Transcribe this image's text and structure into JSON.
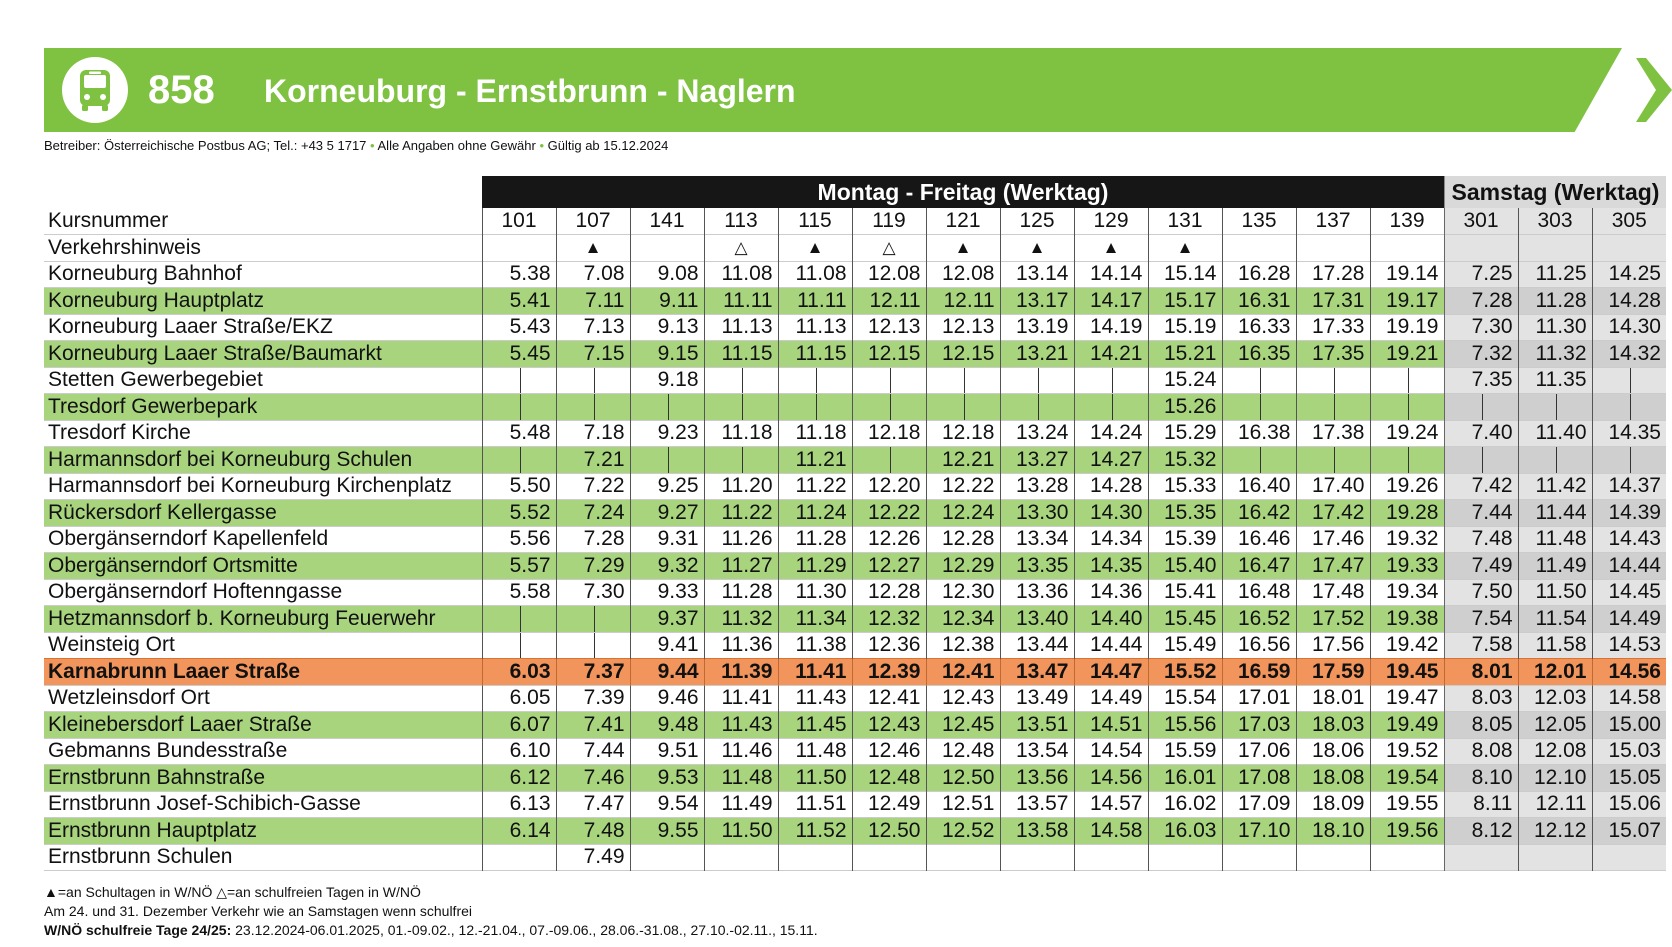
{
  "header": {
    "line_number": "858",
    "route_title": "Korneuburg - Ernstbrunn - Naglern",
    "operator_text": "Betreiber: Österreichische Postbus AG; Tel.: +43 5 1717",
    "disclaimer": "Alle Angaben ohne Gewähr",
    "valid_from": "Gültig ab 15.12.2024",
    "bullet": "•"
  },
  "groups": {
    "weekday": "Montag - Freitag (Werktag)",
    "saturday": "Samstag (Werktag)"
  },
  "row_labels": {
    "course_number": "Kursnummer",
    "traffic_note": "Verkehrshinweis"
  },
  "courses": [
    "101",
    "107",
    "141",
    "113",
    "115",
    "119",
    "121",
    "125",
    "129",
    "131",
    "135",
    "137",
    "139",
    "301",
    "303",
    "305"
  ],
  "notes": [
    "",
    "▲",
    "",
    "△",
    "▲",
    "△",
    "▲",
    "▲",
    "▲",
    "▲",
    "",
    "",
    "",
    "",
    "",
    ""
  ],
  "stops": [
    {
      "name": "Korneuburg Bahnhof",
      "times": [
        "5.38",
        "7.08",
        "9.08",
        "11.08",
        "11.08",
        "12.08",
        "12.08",
        "13.14",
        "14.14",
        "15.14",
        "16.28",
        "17.28",
        "19.14",
        "7.25",
        "11.25",
        "14.25"
      ]
    },
    {
      "name": "Korneuburg Hauptplatz",
      "times": [
        "5.41",
        "7.11",
        "9.11",
        "11.11",
        "11.11",
        "12.11",
        "12.11",
        "13.17",
        "14.17",
        "15.17",
        "16.31",
        "17.31",
        "19.17",
        "7.28",
        "11.28",
        "14.28"
      ]
    },
    {
      "name": "Korneuburg Laaer Straße/EKZ",
      "times": [
        "5.43",
        "7.13",
        "9.13",
        "11.13",
        "11.13",
        "12.13",
        "12.13",
        "13.19",
        "14.19",
        "15.19",
        "16.33",
        "17.33",
        "19.19",
        "7.30",
        "11.30",
        "14.30"
      ]
    },
    {
      "name": "Korneuburg Laaer Straße/Baumarkt",
      "times": [
        "5.45",
        "7.15",
        "9.15",
        "11.15",
        "11.15",
        "12.15",
        "12.15",
        "13.21",
        "14.21",
        "15.21",
        "16.35",
        "17.35",
        "19.21",
        "7.32",
        "11.32",
        "14.32"
      ]
    },
    {
      "name": "Stetten Gewerbegebiet",
      "times": [
        "|",
        "|",
        "9.18",
        "|",
        "|",
        "|",
        "|",
        "|",
        "|",
        "15.24",
        "|",
        "|",
        "|",
        "7.35",
        "11.35",
        "|"
      ]
    },
    {
      "name": "Tresdorf Gewerbepark",
      "times": [
        "|",
        "|",
        "|",
        "|",
        "|",
        "|",
        "|",
        "|",
        "|",
        "15.26",
        "|",
        "|",
        "|",
        "|",
        "|",
        "|"
      ]
    },
    {
      "name": "Tresdorf Kirche",
      "times": [
        "5.48",
        "7.18",
        "9.23",
        "11.18",
        "11.18",
        "12.18",
        "12.18",
        "13.24",
        "14.24",
        "15.29",
        "16.38",
        "17.38",
        "19.24",
        "7.40",
        "11.40",
        "14.35"
      ]
    },
    {
      "name": "Harmannsdorf bei Korneuburg Schulen",
      "times": [
        "|",
        "7.21",
        "|",
        "|",
        "11.21",
        "|",
        "12.21",
        "13.27",
        "14.27",
        "15.32",
        "|",
        "|",
        "|",
        "|",
        "|",
        "|"
      ]
    },
    {
      "name": "Harmannsdorf bei Korneuburg Kirchenplatz",
      "times": [
        "5.50",
        "7.22",
        "9.25",
        "11.20",
        "11.22",
        "12.20",
        "12.22",
        "13.28",
        "14.28",
        "15.33",
        "16.40",
        "17.40",
        "19.26",
        "7.42",
        "11.42",
        "14.37"
      ]
    },
    {
      "name": "Rückersdorf Kellergasse",
      "times": [
        "5.52",
        "7.24",
        "9.27",
        "11.22",
        "11.24",
        "12.22",
        "12.24",
        "13.30",
        "14.30",
        "15.35",
        "16.42",
        "17.42",
        "19.28",
        "7.44",
        "11.44",
        "14.39"
      ]
    },
    {
      "name": "Obergänserndorf Kapellenfeld",
      "times": [
        "5.56",
        "7.28",
        "9.31",
        "11.26",
        "11.28",
        "12.26",
        "12.28",
        "13.34",
        "14.34",
        "15.39",
        "16.46",
        "17.46",
        "19.32",
        "7.48",
        "11.48",
        "14.43"
      ]
    },
    {
      "name": "Obergänserndorf Ortsmitte",
      "times": [
        "5.57",
        "7.29",
        "9.32",
        "11.27",
        "11.29",
        "12.27",
        "12.29",
        "13.35",
        "14.35",
        "15.40",
        "16.47",
        "17.47",
        "19.33",
        "7.49",
        "11.49",
        "14.44"
      ]
    },
    {
      "name": "Obergänserndorf Hoftenngasse",
      "times": [
        "5.58",
        "7.30",
        "9.33",
        "11.28",
        "11.30",
        "12.28",
        "12.30",
        "13.36",
        "14.36",
        "15.41",
        "16.48",
        "17.48",
        "19.34",
        "7.50",
        "11.50",
        "14.45"
      ]
    },
    {
      "name": "Hetzmannsdorf b. Korneuburg Feuerwehr",
      "times": [
        "|",
        "|",
        "9.37",
        "11.32",
        "11.34",
        "12.32",
        "12.34",
        "13.40",
        "14.40",
        "15.45",
        "16.52",
        "17.52",
        "19.38",
        "7.54",
        "11.54",
        "14.49"
      ]
    },
    {
      "name": "Weinsteig Ort",
      "times": [
        "|",
        "|",
        "9.41",
        "11.36",
        "11.38",
        "12.36",
        "12.38",
        "13.44",
        "14.44",
        "15.49",
        "16.56",
        "17.56",
        "19.42",
        "7.58",
        "11.58",
        "14.53"
      ]
    },
    {
      "name": "Karnabrunn Laaer Straße",
      "times": [
        "6.03",
        "7.37",
        "9.44",
        "11.39",
        "11.41",
        "12.39",
        "12.41",
        "13.47",
        "14.47",
        "15.52",
        "16.59",
        "17.59",
        "19.45",
        "8.01",
        "12.01",
        "14.56"
      ]
    },
    {
      "name": "Wetzleinsdorf Ort",
      "times": [
        "6.05",
        "7.39",
        "9.46",
        "11.41",
        "11.43",
        "12.41",
        "12.43",
        "13.49",
        "14.49",
        "15.54",
        "17.01",
        "18.01",
        "19.47",
        "8.03",
        "12.03",
        "14.58"
      ]
    },
    {
      "name": "Kleinebersdorf Laaer Straße",
      "times": [
        "6.07",
        "7.41",
        "9.48",
        "11.43",
        "11.45",
        "12.43",
        "12.45",
        "13.51",
        "14.51",
        "15.56",
        "17.03",
        "18.03",
        "19.49",
        "8.05",
        "12.05",
        "15.00"
      ]
    },
    {
      "name": "Gebmanns Bundesstraße",
      "times": [
        "6.10",
        "7.44",
        "9.51",
        "11.46",
        "11.48",
        "12.46",
        "12.48",
        "13.54",
        "14.54",
        "15.59",
        "17.06",
        "18.06",
        "19.52",
        "8.08",
        "12.08",
        "15.03"
      ]
    },
    {
      "name": "Ernstbrunn Bahnstraße",
      "times": [
        "6.12",
        "7.46",
        "9.53",
        "11.48",
        "11.50",
        "12.48",
        "12.50",
        "13.56",
        "14.56",
        "16.01",
        "17.08",
        "18.08",
        "19.54",
        "8.10",
        "12.10",
        "15.05"
      ]
    },
    {
      "name": "Ernstbrunn Josef-Schibich-Gasse",
      "times": [
        "6.13",
        "7.47",
        "9.54",
        "11.49",
        "11.51",
        "12.49",
        "12.51",
        "13.57",
        "14.57",
        "16.02",
        "17.09",
        "18.09",
        "19.55",
        "8.11",
        "12.11",
        "15.06"
      ]
    },
    {
      "name": "Ernstbrunn Hauptplatz",
      "times": [
        "6.14",
        "7.48",
        "9.55",
        "11.50",
        "11.52",
        "12.50",
        "12.52",
        "13.58",
        "14.58",
        "16.03",
        "17.10",
        "18.10",
        "19.56",
        "8.12",
        "12.12",
        "15.07"
      ]
    },
    {
      "name": "Ernstbrunn Schulen",
      "times": [
        "",
        "7.49",
        "",
        "",
        "",
        "",
        "",
        "",
        "",
        "",
        "",
        "",
        "",
        "",
        "",
        ""
      ]
    }
  ],
  "highlight_stop": "Karnabrunn Laaer Straße",
  "legend": {
    "line1": "▲=an Schultagen in W/NÖ   △=an schulfreien Tagen in W/NÖ",
    "line2": "Am 24. und 31. Dezember Verkehr wie an Samstagen wenn schulfrei",
    "line3_label": "W/NÖ schulfreie Tage 24/25:",
    "line3_text": " 23.12.2024-06.01.2025, 01.-09.02., 12.-21.04., 07.-09.06., 28.06.-31.08., 27.10.-02.11., 15.11."
  },
  "colors": {
    "brand_green": "#7fc241",
    "row_green": "#a9d47e",
    "highlight_orange": "#f2955c",
    "header_black": "#161616",
    "saturday_gray": "#e3e3e3"
  }
}
